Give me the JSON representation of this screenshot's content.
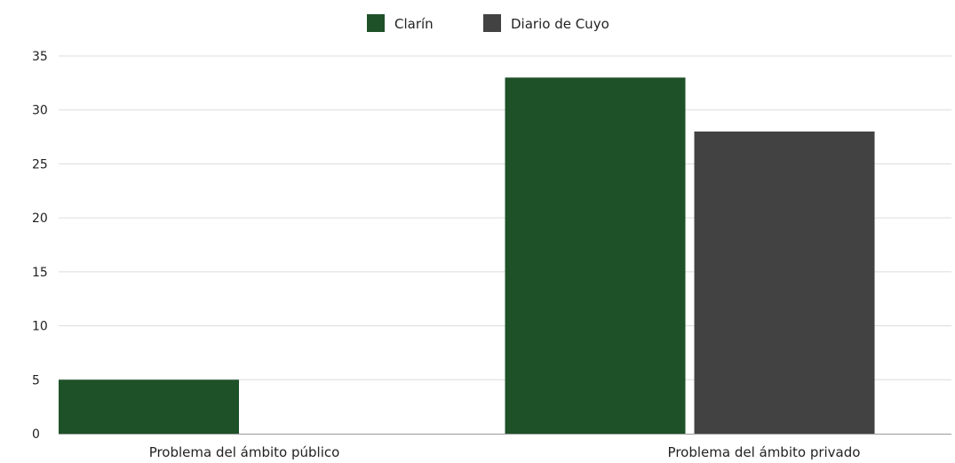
{
  "chart_data": {
    "type": "bar",
    "categories": [
      "Problema del ámbito público",
      "Problema del ámbito privado"
    ],
    "series": [
      {
        "name": "Clarín",
        "values": [
          5,
          33
        ],
        "color": "#1e5128"
      },
      {
        "name": "Diario de Cuyo",
        "values": [
          0,
          28
        ],
        "color": "#424242"
      }
    ],
    "yticks": [
      0,
      5,
      10,
      15,
      20,
      25,
      30,
      35
    ],
    "ylim": [
      0,
      35
    ],
    "grid": true,
    "legend_position": "top-center"
  }
}
